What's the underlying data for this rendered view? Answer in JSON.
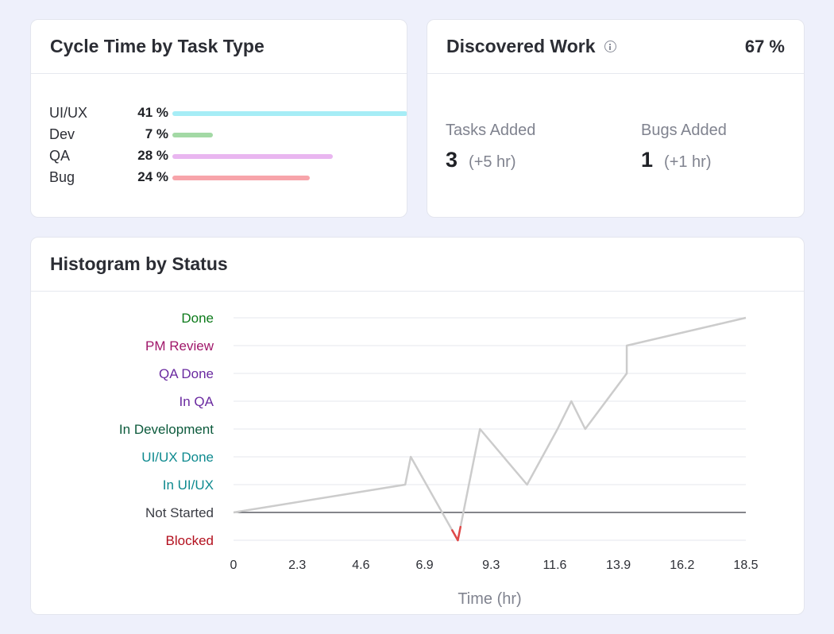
{
  "cycle_time": {
    "title": "Cycle Time by Task Type",
    "rows": [
      {
        "label": "UI/UX",
        "pct_label": "41 %",
        "value": 41,
        "color": "#a6edf6"
      },
      {
        "label": "Dev",
        "pct_label": "7 %",
        "value": 7,
        "color": "#a3d9a5"
      },
      {
        "label": "QA",
        "pct_label": "28 %",
        "value": 28,
        "color": "#e9b6f0"
      },
      {
        "label": "Bug",
        "pct_label": "24 %",
        "value": 24,
        "color": "#f7a4aa"
      }
    ]
  },
  "discovered_work": {
    "title": "Discovered Work",
    "icon": "info-icon",
    "percent": "67 %",
    "tasks": {
      "label": "Tasks Added",
      "value": "3",
      "hours": "(+5 hr)"
    },
    "bugs": {
      "label": "Bugs Added",
      "value": "1",
      "hours": "(+1 hr)"
    }
  },
  "histogram": {
    "title": "Histogram by Status"
  },
  "chart_data": {
    "type": "line",
    "title": "Histogram by Status",
    "xlabel": "Time (hr)",
    "ylabel": "",
    "xlim": [
      0,
      18.5
    ],
    "x_ticks": [
      "0",
      "2.3",
      "4.6",
      "6.9",
      "9.3",
      "11.6",
      "13.9",
      "16.2",
      "18.5"
    ],
    "x_tick_values": [
      0,
      2.3,
      4.6,
      6.9,
      9.3,
      11.6,
      13.9,
      16.2,
      18.5
    ],
    "categories": [
      "Blocked",
      "Not Started",
      "In UI/UX",
      "UI/UX Done",
      "In Development",
      "In QA",
      "QA Done",
      "PM Review",
      "Done"
    ],
    "category_colors": [
      "#b3101e",
      "#3a3c44",
      "#0e8a8f",
      "#0e8a8f",
      "#0c5a3c",
      "#6a2aa0",
      "#6a2aa0",
      "#a0176a",
      "#0c7a1a"
    ],
    "grid": true,
    "series": [
      {
        "color": "#cccccc",
        "highlight_color": "#e04848",
        "points": [
          {
            "x": 0.0,
            "status": "Not Started"
          },
          {
            "x": 6.2,
            "status": "In UI/UX"
          },
          {
            "x": 6.4,
            "status": "UI/UX Done"
          },
          {
            "x": 8.1,
            "status": "Blocked"
          },
          {
            "x": 8.9,
            "status": "In Development"
          },
          {
            "x": 10.6,
            "status": "In UI/UX"
          },
          {
            "x": 11.7,
            "status": "In Development"
          },
          {
            "x": 12.2,
            "status": "In QA"
          },
          {
            "x": 12.7,
            "status": "In Development"
          },
          {
            "x": 14.2,
            "status": "QA Done"
          },
          {
            "x": 14.2,
            "status": "PM Review"
          },
          {
            "x": 18.5,
            "status": "Done"
          }
        ]
      }
    ]
  }
}
